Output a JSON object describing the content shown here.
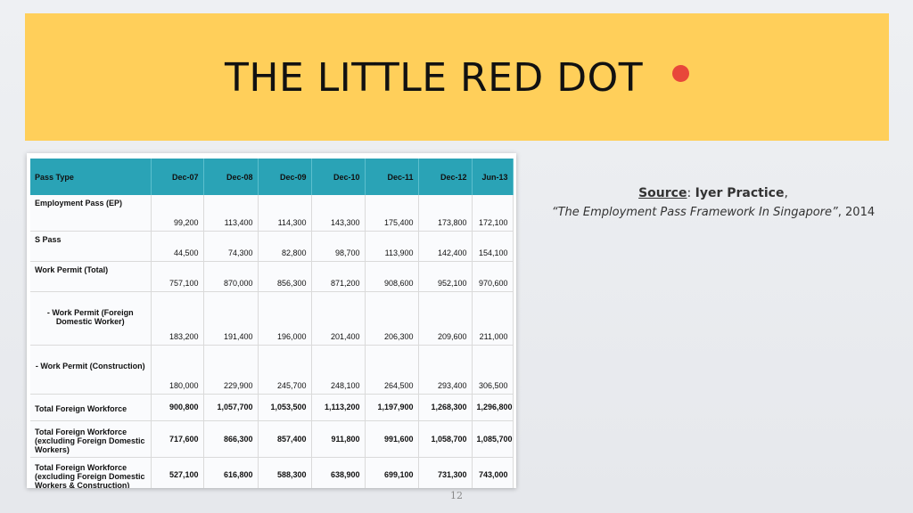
{
  "slide": {
    "title": "THE LITTLE RED DOT",
    "page_number": "12",
    "accent_banner_color": "#ffcf5a",
    "dot_color": "#e8473a",
    "source": {
      "label": "Source",
      "sep": ": ",
      "author": "Iyer Practice",
      "comma": ",",
      "publication": "“The Employment Pass Framework In Singapore”",
      "year": ", 2014"
    }
  },
  "table": {
    "header_color": "#2aa3b6",
    "columns": [
      "Pass Type",
      "Dec-07",
      "Dec-08",
      "Dec-09",
      "Dec-10",
      "Dec-11",
      "Dec-12",
      "Jun-13"
    ],
    "rows": [
      {
        "label": "Employment Pass (EP)",
        "values": [
          "99,200",
          "113,400",
          "114,300",
          "143,300",
          "175,400",
          "173,800",
          "172,100"
        ]
      },
      {
        "label": "S Pass",
        "values": [
          "44,500",
          "74,300",
          "82,800",
          "98,700",
          "113,900",
          "142,400",
          "154,100"
        ]
      },
      {
        "label": "Work Permit (Total)",
        "values": [
          "757,100",
          "870,000",
          "856,300",
          "871,200",
          "908,600",
          "952,100",
          "970,600"
        ]
      },
      {
        "label": "- Work Permit (Foreign Domestic Worker)",
        "values": [
          "183,200",
          "191,400",
          "196,000",
          "201,400",
          "206,300",
          "209,600",
          "211,000"
        ]
      },
      {
        "label": "- Work Permit (Construction)",
        "values": [
          "180,000",
          "229,900",
          "245,700",
          "248,100",
          "264,500",
          "293,400",
          "306,500"
        ]
      },
      {
        "label": "Total Foreign Workforce",
        "values": [
          "900,800",
          "1,057,700",
          "1,053,500",
          "1,113,200",
          "1,197,900",
          "1,268,300",
          "1,296,800"
        ]
      },
      {
        "label": "Total Foreign Workforce (excluding Foreign Domestic Workers)",
        "values": [
          "717,600",
          "866,300",
          "857,400",
          "911,800",
          "991,600",
          "1,058,700",
          "1,085,700"
        ]
      },
      {
        "label": "Total Foreign Workforce (excluding Foreign Domestic Workers & Construction)",
        "values": [
          "527,100",
          "616,800",
          "588,300",
          "638,900",
          "699,100",
          "731,300",
          "743,000"
        ]
      }
    ]
  }
}
